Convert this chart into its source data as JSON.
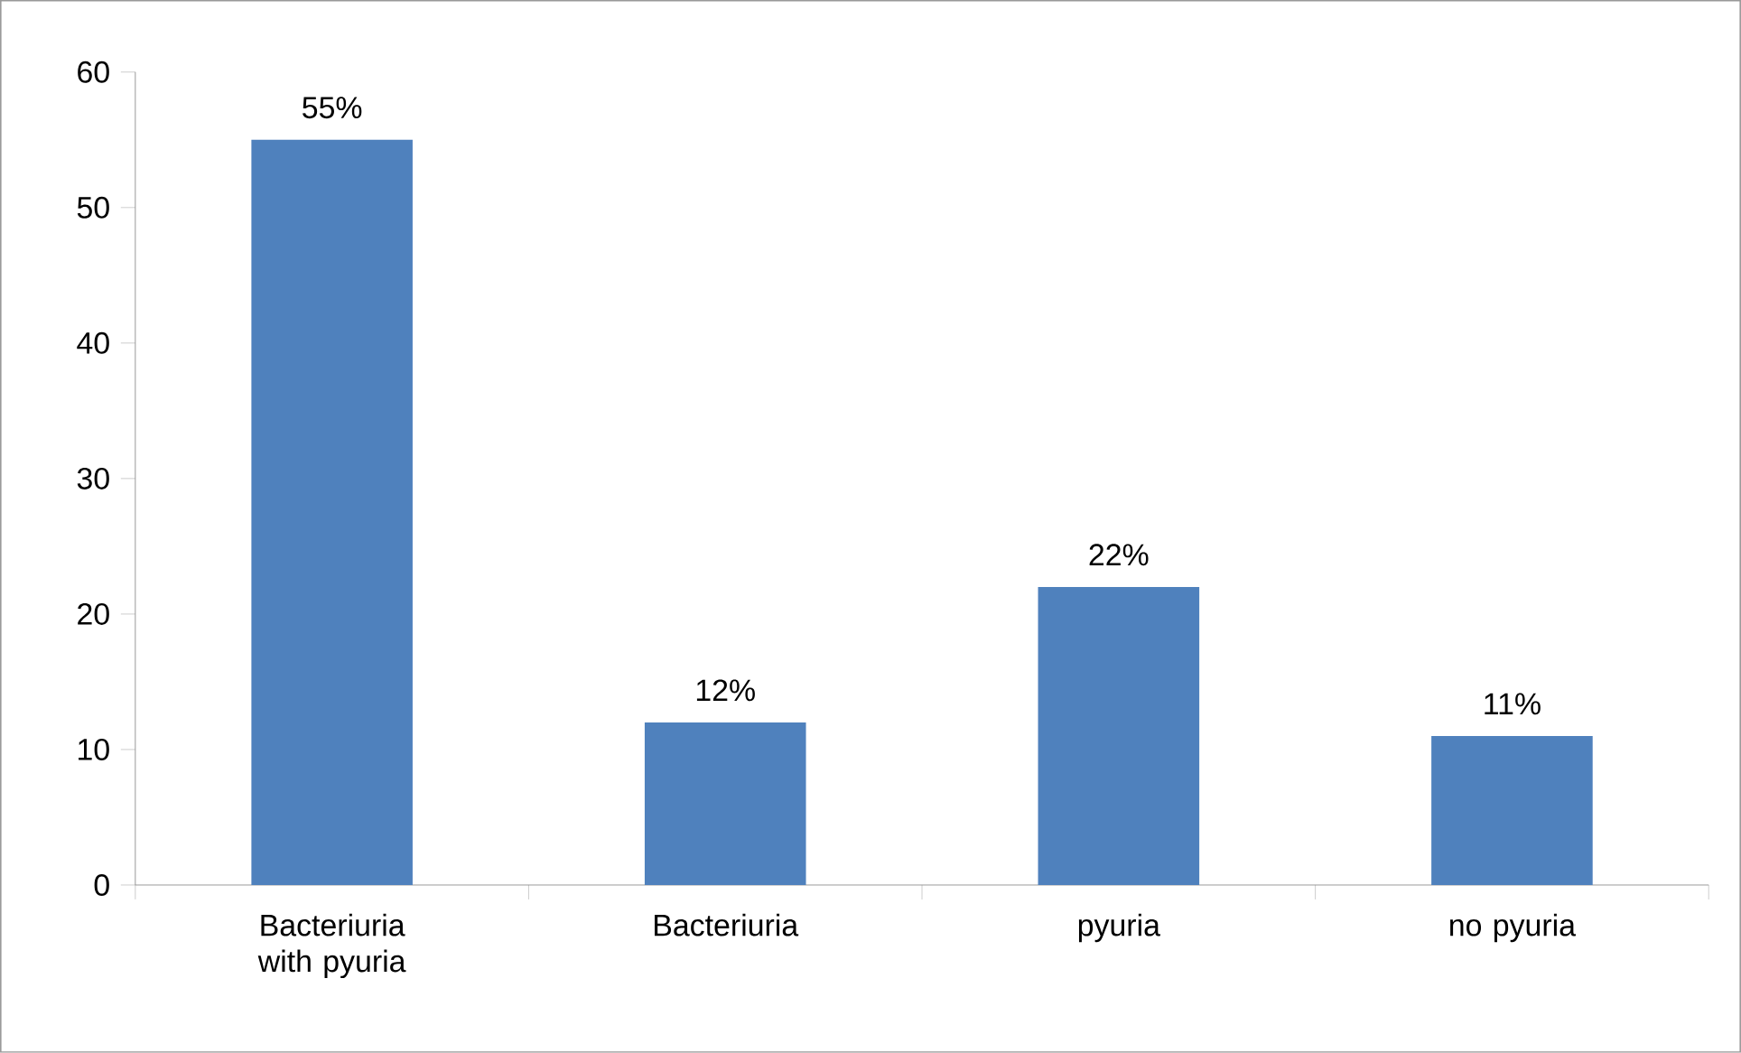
{
  "chart_data": {
    "type": "bar",
    "categories": [
      "Bacteriuria with pyuria",
      "Bacteriuria",
      "pyuria",
      "no pyuria"
    ],
    "values": [
      55,
      12,
      22,
      11
    ],
    "value_labels": [
      "55%",
      "12%",
      "22%",
      "11%"
    ],
    "color": "#4f81bd",
    "ylim": [
      0,
      60
    ],
    "yticks": [
      0,
      10,
      20,
      30,
      40,
      50,
      60
    ],
    "grid": false
  }
}
